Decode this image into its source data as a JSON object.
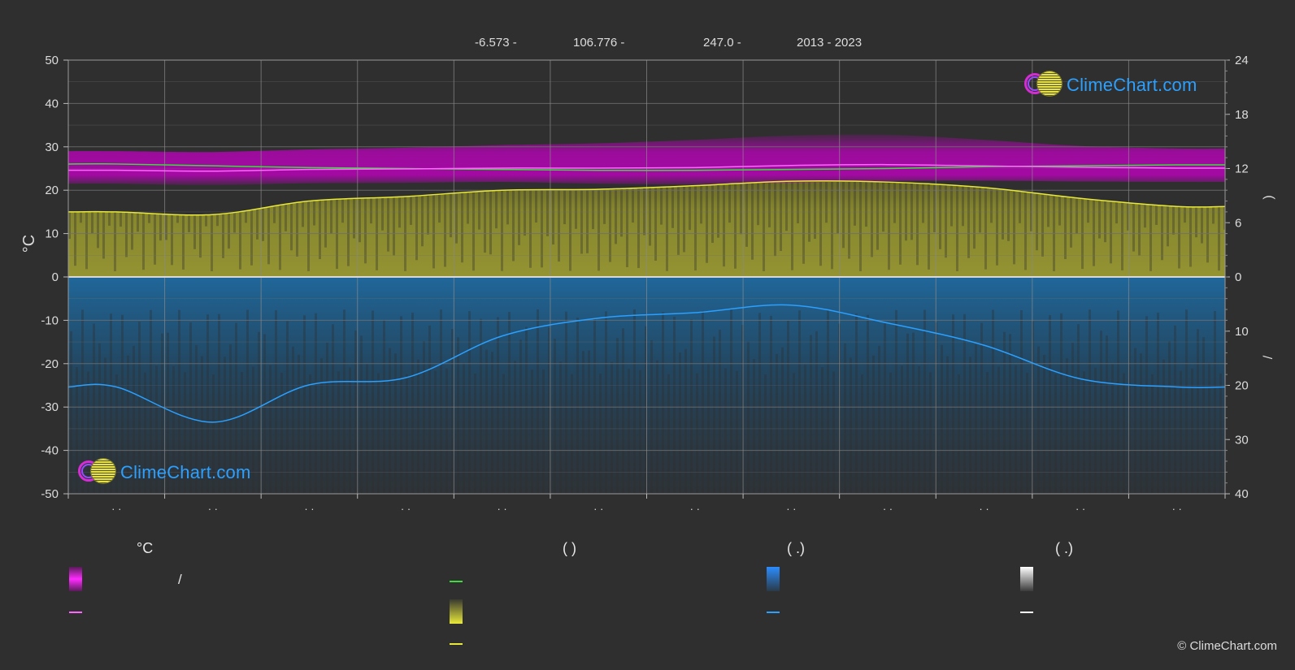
{
  "header": {
    "lat": "-6.573 -",
    "lon": "106.776 -",
    "elevation": "247.0 -",
    "years": "2013 - 2023"
  },
  "logo_text": "ClimeChart.com",
  "copyright": "© ClimeChart.com",
  "chart_data": {
    "type": "line",
    "y_left": {
      "label": "°C",
      "range": [
        -50,
        50
      ],
      "ticks": [
        50,
        40,
        30,
        20,
        10,
        0,
        -10,
        -20,
        -30,
        -40,
        -50
      ]
    },
    "y_right_top": {
      "label": ")",
      "range": [
        0,
        24
      ],
      "ticks": [
        24,
        18,
        12,
        6,
        0
      ]
    },
    "y_right_bottom": {
      "label": "/",
      "range": [
        0,
        40
      ],
      "ticks": [
        0,
        10,
        20,
        30,
        40
      ]
    },
    "x_tick_labels": [
      "· ·",
      "· ·",
      "· ·",
      "· ·",
      "· ·",
      "· ·",
      "· ·",
      "· ·",
      "· ·",
      "· ·",
      "· ·",
      "· ·"
    ],
    "x_months": [
      0.5,
      1.5,
      2.5,
      3.5,
      4.5,
      5.5,
      6.5,
      7.5,
      8.5,
      9.5,
      10.5,
      11.5
    ],
    "series": [
      {
        "key": "temp_mean",
        "values": [
          24.6,
          24.4,
          24.8,
          24.9,
          25.1,
          25.1,
          25.2,
          25.7,
          25.9,
          25.6,
          25.3,
          25.1
        ]
      },
      {
        "key": "daylight_hours",
        "values": [
          12.5,
          12.3,
          12.1,
          12.0,
          11.9,
          11.8,
          11.8,
          11.9,
          12.0,
          12.2,
          12.3,
          12.4
        ]
      },
      {
        "key": "sunshine_hours",
        "values": [
          7.2,
          6.9,
          8.4,
          8.9,
          9.6,
          9.7,
          10.1,
          10.6,
          10.5,
          9.9,
          8.7,
          7.8
        ]
      },
      {
        "key": "precip_mm",
        "values": [
          20.3,
          26.8,
          19.9,
          18.6,
          10.9,
          7.6,
          6.6,
          5.2,
          8.5,
          12.6,
          18.8,
          20.3
        ]
      }
    ],
    "bands": {
      "temp_band_low": [
        21.5,
        21.2,
        21.6,
        21.7,
        21.9,
        21.5,
        21.3,
        21.7,
        22.1,
        22.2,
        22.0,
        21.9
      ],
      "temp_band_high": [
        29.0,
        28.8,
        29.4,
        29.8,
        30.4,
        30.8,
        31.6,
        32.6,
        32.8,
        31.6,
        30.2,
        29.6
      ]
    },
    "grid": true,
    "colors": {
      "temp_mean": "#ff66ff",
      "temp_band": "#c000c0",
      "daylight": "#3ddc3d",
      "sunshine": "#e8e83a",
      "sunshine_fill": "#8a8a2e",
      "precip": "#2ba0ff",
      "precip_fill": "#1f5a86",
      "background": "#2f2f2f",
      "grid": "#6f6f6f"
    }
  },
  "legend": {
    "col1_header": "°C",
    "col1_range_text": "/",
    "col2_header": "(           )",
    "col3_header": "(   .)",
    "col4_header": "(   .)"
  }
}
